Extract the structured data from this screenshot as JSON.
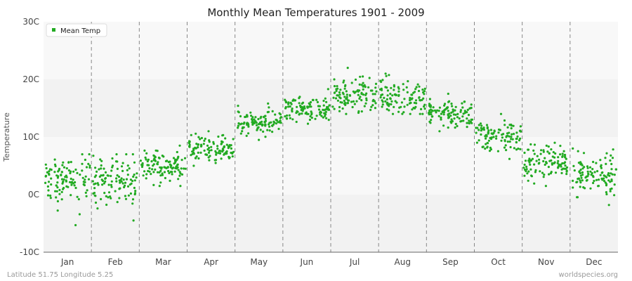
{
  "chart_data": {
    "type": "scatter",
    "title": "Monthly Mean Temperatures 1901 - 2009",
    "ylabel": "Temperature",
    "xlabel": "",
    "categories": [
      "Jan",
      "Feb",
      "Mar",
      "Apr",
      "May",
      "Jun",
      "Jul",
      "Aug",
      "Sep",
      "Oct",
      "Nov",
      "Dec"
    ],
    "yticks": [
      "30C",
      "20C",
      "10C",
      "0C",
      "-10C"
    ],
    "ytick_values": [
      30,
      20,
      10,
      0,
      -10
    ],
    "ylim": [
      -10,
      30
    ],
    "grid": "horizontal bands, dashed vertical month separators",
    "legend": {
      "position": "top-left",
      "entries": [
        "Mean Temp"
      ]
    },
    "series": [
      {
        "name": "Mean Temp",
        "color": "#22aa22",
        "note_years": "1901-2009 (109 points per month)",
        "monthly_summary": [
          {
            "month": "Jan",
            "mean": 2.5,
            "min": -5.3,
            "max": 7.0
          },
          {
            "month": "Feb",
            "mean": 2.3,
            "min": -4.5,
            "max": 7.0
          },
          {
            "month": "Mar",
            "mean": 5.0,
            "min": 1.5,
            "max": 8.5
          },
          {
            "month": "Apr",
            "mean": 8.0,
            "min": 5.0,
            "max": 11.0
          },
          {
            "month": "May",
            "mean": 12.3,
            "min": 9.5,
            "max": 15.8
          },
          {
            "month": "Jun",
            "mean": 14.9,
            "min": 12.3,
            "max": 18.3
          },
          {
            "month": "Jul",
            "mean": 17.1,
            "min": 14.0,
            "max": 22.0
          },
          {
            "month": "Aug",
            "mean": 17.0,
            "min": 14.0,
            "max": 21.0
          },
          {
            "month": "Sep",
            "mean": 14.0,
            "min": 11.0,
            "max": 17.5
          },
          {
            "month": "Oct",
            "mean": 10.2,
            "min": 6.2,
            "max": 14.0
          },
          {
            "month": "Nov",
            "mean": 5.7,
            "min": 1.5,
            "max": 9.0
          },
          {
            "month": "Dec",
            "mean": 3.5,
            "min": -1.8,
            "max": 8.0
          }
        ]
      }
    ]
  },
  "footer": {
    "left": "Latitude 51.75 Longitude 5.25",
    "right": "worldspecies.org"
  }
}
